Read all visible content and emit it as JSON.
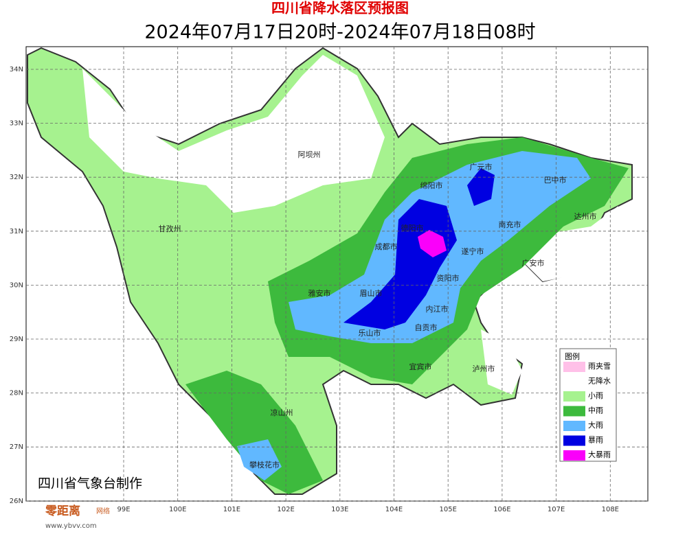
{
  "header": {
    "title": "四川省降水落区预报图",
    "subtitle": "2024年07月17日20时-2024年07月18日08时"
  },
  "axes": {
    "xticks": [
      {
        "value": 99,
        "label": "99E"
      },
      {
        "value": 100,
        "label": "100E"
      },
      {
        "value": 101,
        "label": "101E"
      },
      {
        "value": 102,
        "label": "102E"
      },
      {
        "value": 103,
        "label": "103E"
      },
      {
        "value": 104,
        "label": "104E"
      },
      {
        "value": 105,
        "label": "105E"
      },
      {
        "value": 106,
        "label": "106E"
      },
      {
        "value": 107,
        "label": "107E"
      },
      {
        "value": 108,
        "label": "108E"
      }
    ],
    "yticks": [
      {
        "value": 26,
        "label": "26N"
      },
      {
        "value": 27,
        "label": "27N"
      },
      {
        "value": 28,
        "label": "28N"
      },
      {
        "value": 29,
        "label": "29N"
      },
      {
        "value": 30,
        "label": "30N"
      },
      {
        "value": 31,
        "label": "31N"
      },
      {
        "value": 32,
        "label": "32N"
      },
      {
        "value": 33,
        "label": "33N"
      },
      {
        "value": 34,
        "label": "34N"
      }
    ]
  },
  "places": [
    "阿坝州",
    "甘孜州",
    "绵阳市",
    "广元市",
    "巴中市",
    "达州市",
    "南充市",
    "广安市",
    "遂宁市",
    "德阳市",
    "成都市",
    "资阳市",
    "雅安市",
    "眉山市",
    "内江市",
    "乐山市",
    "自贡市",
    "宜宾市",
    "泸州市",
    "凉山州",
    "攀枝花市"
  ],
  "legend": {
    "title": "图例",
    "items": [
      {
        "name": "雨夹雪",
        "color": "#ffc0e8"
      },
      {
        "name": "无降水",
        "color": "#ffffff"
      },
      {
        "name": "小雨",
        "color": "#a6f28f"
      },
      {
        "name": "中雨",
        "color": "#3dba3d"
      },
      {
        "name": "大雨",
        "color": "#61b8ff"
      },
      {
        "name": "暴雨",
        "color": "#0000e1"
      },
      {
        "name": "大暴雨",
        "color": "#fa00fa"
      }
    ]
  },
  "credit": "四川省气象台制作",
  "watermark": {
    "name": "零距离",
    "suffix": "网络",
    "url": "www.ybvv.com"
  }
}
